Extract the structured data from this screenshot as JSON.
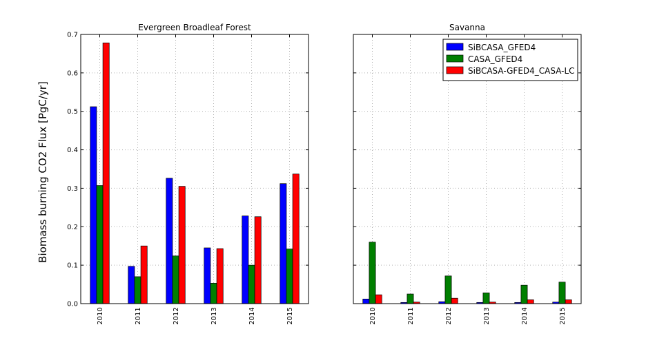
{
  "figure": {
    "ylabel": "Biomass burning CO2 Flux [PgC/yr]"
  },
  "chart_data": [
    {
      "type": "bar",
      "title": "Evergreen Broadleaf Forest",
      "xlabel": "",
      "ylabel": "Biomass burning CO2 Flux [PgC/yr]",
      "ylim": [
        0,
        0.7
      ],
      "yticks": [
        "0.0",
        "0.1",
        "0.2",
        "0.3",
        "0.4",
        "0.5",
        "0.6",
        "0.7"
      ],
      "grid": true,
      "categories": [
        "2010",
        "2011",
        "2012",
        "2013",
        "2014",
        "2015"
      ],
      "series": [
        {
          "name": "SiBCASA_GFED4",
          "color": "#0000ff",
          "values": [
            0.512,
            0.097,
            0.326,
            0.145,
            0.228,
            0.312
          ]
        },
        {
          "name": "CASA_GFED4",
          "color": "#007f00",
          "values": [
            0.307,
            0.07,
            0.124,
            0.053,
            0.1,
            0.142
          ]
        },
        {
          "name": "SiBCASA-GFED4_CASA-LC",
          "color": "#ff0000",
          "values": [
            0.678,
            0.15,
            0.305,
            0.143,
            0.226,
            0.337
          ]
        }
      ]
    },
    {
      "type": "bar",
      "title": "Savanna",
      "xlabel": "",
      "ylim": [
        0,
        0.7
      ],
      "grid": true,
      "legend": "top-right",
      "categories": [
        "2010",
        "2011",
        "2012",
        "2013",
        "2014",
        "2015"
      ],
      "series": [
        {
          "name": "SiBCASA_GFED4",
          "color": "#0000ff",
          "values": [
            0.012,
            0.003,
            0.005,
            0.003,
            0.003,
            0.004
          ]
        },
        {
          "name": "CASA_GFED4",
          "color": "#007f00",
          "values": [
            0.16,
            0.025,
            0.072,
            0.028,
            0.048,
            0.056
          ]
        },
        {
          "name": "SiBCASA-GFED4_CASA-LC",
          "color": "#ff0000",
          "values": [
            0.023,
            0.004,
            0.014,
            0.004,
            0.01,
            0.01
          ]
        }
      ]
    }
  ]
}
